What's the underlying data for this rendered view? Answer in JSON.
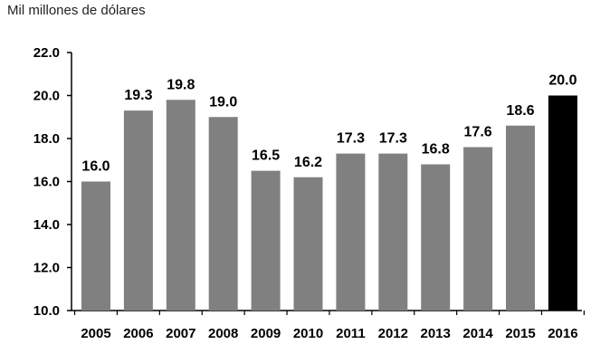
{
  "chart_data": {
    "type": "bar",
    "unit_label": "Mil millones de dólares",
    "categories": [
      "2005",
      "2006",
      "2007",
      "2008",
      "2009",
      "2010",
      "2011",
      "2012",
      "2013",
      "2014",
      "2015",
      "2016"
    ],
    "values": [
      16.0,
      19.3,
      19.8,
      19.0,
      16.5,
      16.2,
      17.3,
      17.3,
      16.8,
      17.6,
      18.6,
      20.0
    ],
    "data_labels": [
      "16.0",
      "19.3",
      "19.8",
      "19.0",
      "16.5",
      "16.2",
      "17.3",
      "17.3",
      "16.8",
      "17.6",
      "18.6",
      "20.0"
    ],
    "ylim": [
      10.0,
      22.0
    ],
    "yticks": [
      10.0,
      12.0,
      14.0,
      16.0,
      18.0,
      20.0,
      22.0
    ],
    "ytick_labels": [
      "10.0",
      "12.0",
      "14.0",
      "16.0",
      "18.0",
      "20.0",
      "22.0"
    ],
    "grid": false,
    "colors": {
      "bar": "#808080",
      "highlight_bar": "#000000",
      "axis": "#000000"
    },
    "highlight_index": 11
  }
}
